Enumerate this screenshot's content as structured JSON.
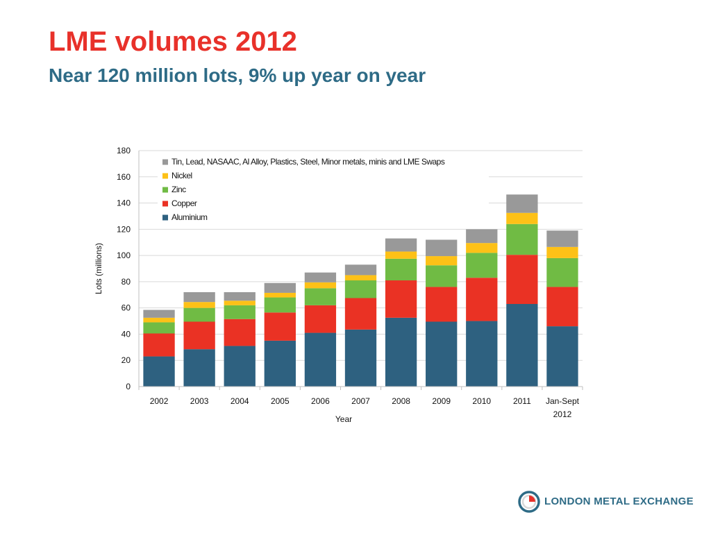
{
  "slide": {
    "title": "LME volumes 2012",
    "subtitle": "Near 120 million lots, 9% up year on year"
  },
  "logo": {
    "text": "LONDON METAL EXCHANGE",
    "icon": "lme-roundel-icon",
    "colors": {
      "ring": "#2e6b86",
      "accent": "#e8312a"
    }
  },
  "chart_data": {
    "type": "bar",
    "stacked": true,
    "xlabel": "Year",
    "ylabel": "Lots (millions)",
    "ylim": [
      0,
      180
    ],
    "yticks": [
      0,
      20,
      40,
      60,
      80,
      100,
      120,
      140,
      160,
      180
    ],
    "grid": true,
    "legend_position": "top-left",
    "categories": [
      "2002",
      "2003",
      "2004",
      "2005",
      "2006",
      "2007",
      "2008",
      "2009",
      "2010",
      "2011",
      "Jan-Sept 2012"
    ],
    "category_lines": [
      [
        "2002"
      ],
      [
        "2003"
      ],
      [
        "2004"
      ],
      [
        "2005"
      ],
      [
        "2006"
      ],
      [
        "2007"
      ],
      [
        "2008"
      ],
      [
        "2009"
      ],
      [
        "2010"
      ],
      [
        "2011"
      ],
      [
        "Jan-Sept",
        "2012"
      ]
    ],
    "series": [
      {
        "name": "Aluminium",
        "color": "#2e6180",
        "values": [
          23,
          28.5,
          31,
          35,
          41,
          43.5,
          52.5,
          49.5,
          50,
          63,
          46
        ]
      },
      {
        "name": "Copper",
        "color": "#ea3224",
        "values": [
          17.5,
          21,
          20.5,
          21.5,
          21,
          24,
          28.5,
          26.5,
          33,
          37.5,
          30
        ]
      },
      {
        "name": "Zinc",
        "color": "#70bb44",
        "values": [
          8.5,
          10.5,
          10.5,
          11.5,
          13,
          13.5,
          16.5,
          16.5,
          19,
          23.5,
          22
        ]
      },
      {
        "name": "Nickel",
        "color": "#fdc117",
        "values": [
          3.5,
          4.5,
          3.5,
          3.5,
          4.5,
          4,
          5.5,
          7,
          7.5,
          8.5,
          8.5
        ]
      },
      {
        "name": "Tin, Lead, NASAAC, Al Alloy, Plastics, Steel, Minor metals, minis and LME Swaps",
        "color": "#999999",
        "values": [
          6,
          7.5,
          6.5,
          7.5,
          7.5,
          8,
          10,
          12.5,
          10.5,
          14,
          12.5
        ]
      }
    ]
  }
}
